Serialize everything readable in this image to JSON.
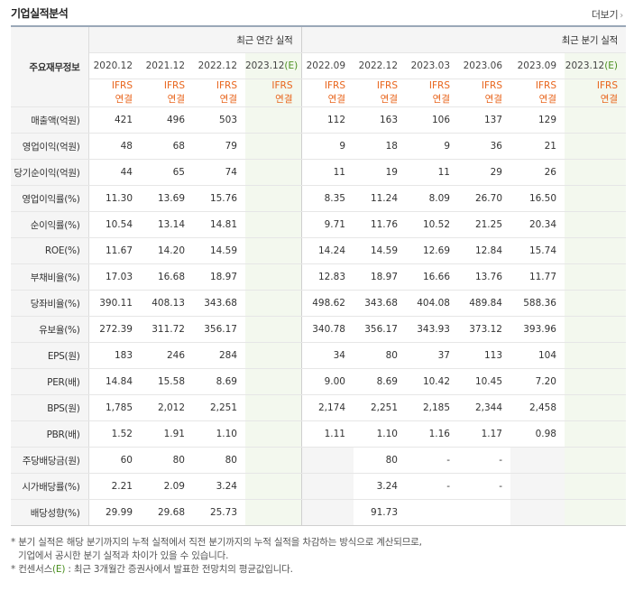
{
  "title": "기업실적분석",
  "more_label": "더보기",
  "header": {
    "row_label": "주요재무정보",
    "annual_label": "최근 연간 실적",
    "quarter_label": "최근 분기 실적",
    "estimate_suffix": "(E)",
    "annual_periods": [
      "2020.12",
      "2021.12",
      "2022.12",
      "2023.12"
    ],
    "quarter_periods": [
      "2022.09",
      "2022.12",
      "2023.03",
      "2023.06",
      "2023.09",
      "2023.12"
    ],
    "ifrs_line1": "IFRS",
    "ifrs_line2": "연결"
  },
  "rows": [
    {
      "label": "매출액(억원)",
      "annual": [
        "421",
        "496",
        "503",
        ""
      ],
      "quarter": [
        "112",
        "163",
        "106",
        "137",
        "129",
        ""
      ]
    },
    {
      "label": "영업이익(억원)",
      "annual": [
        "48",
        "68",
        "79",
        ""
      ],
      "quarter": [
        "9",
        "18",
        "9",
        "36",
        "21",
        ""
      ]
    },
    {
      "label": "당기순이익(억원)",
      "annual": [
        "44",
        "65",
        "74",
        ""
      ],
      "quarter": [
        "11",
        "19",
        "11",
        "29",
        "26",
        ""
      ]
    },
    {
      "label": "영업이익률(%)",
      "annual": [
        "11.30",
        "13.69",
        "15.76",
        ""
      ],
      "quarter": [
        "8.35",
        "11.24",
        "8.09",
        "26.70",
        "16.50",
        ""
      ]
    },
    {
      "label": "순이익률(%)",
      "annual": [
        "10.54",
        "13.14",
        "14.81",
        ""
      ],
      "quarter": [
        "9.71",
        "11.76",
        "10.52",
        "21.25",
        "20.34",
        ""
      ]
    },
    {
      "label": "ROE(%)",
      "annual": [
        "11.67",
        "14.20",
        "14.59",
        ""
      ],
      "quarter": [
        "14.24",
        "14.59",
        "12.69",
        "12.84",
        "15.74",
        ""
      ]
    },
    {
      "label": "부채비율(%)",
      "annual": [
        "17.03",
        "16.68",
        "18.97",
        ""
      ],
      "quarter": [
        "12.83",
        "18.97",
        "16.66",
        "13.76",
        "11.77",
        ""
      ]
    },
    {
      "label": "당좌비율(%)",
      "annual": [
        "390.11",
        "408.13",
        "343.68",
        ""
      ],
      "quarter": [
        "498.62",
        "343.68",
        "404.08",
        "489.84",
        "588.36",
        ""
      ]
    },
    {
      "label": "유보율(%)",
      "annual": [
        "272.39",
        "311.72",
        "356.17",
        ""
      ],
      "quarter": [
        "340.78",
        "356.17",
        "343.93",
        "373.12",
        "393.96",
        ""
      ]
    },
    {
      "label": "EPS(원)",
      "annual": [
        "183",
        "246",
        "284",
        ""
      ],
      "quarter": [
        "34",
        "80",
        "37",
        "113",
        "104",
        ""
      ]
    },
    {
      "label": "PER(배)",
      "annual": [
        "14.84",
        "15.58",
        "8.69",
        ""
      ],
      "quarter": [
        "9.00",
        "8.69",
        "10.42",
        "10.45",
        "7.20",
        ""
      ]
    },
    {
      "label": "BPS(원)",
      "annual": [
        "1,785",
        "2,012",
        "2,251",
        ""
      ],
      "quarter": [
        "2,174",
        "2,251",
        "2,185",
        "2,344",
        "2,458",
        ""
      ]
    },
    {
      "label": "PBR(배)",
      "annual": [
        "1.52",
        "1.91",
        "1.10",
        ""
      ],
      "quarter": [
        "1.11",
        "1.10",
        "1.16",
        "1.17",
        "0.98",
        ""
      ]
    },
    {
      "label": "주당배당금(원)",
      "annual": [
        "60",
        "80",
        "80",
        ""
      ],
      "quarter": [
        "",
        "80",
        "-",
        "-",
        "",
        ""
      ]
    },
    {
      "label": "시가배당률(%)",
      "annual": [
        "2.21",
        "2.09",
        "3.24",
        ""
      ],
      "quarter": [
        "",
        "3.24",
        "-",
        "-",
        "",
        ""
      ]
    },
    {
      "label": "배당성향(%)",
      "annual": [
        "29.99",
        "29.68",
        "25.73",
        ""
      ],
      "quarter": [
        "",
        "91.73",
        "",
        "",
        "",
        ""
      ]
    }
  ],
  "notes": {
    "line1": "* 분기 실적은 해당 분기까지의 누적 실적에서 직전 분기까지의 누적 실적을 차감하는 방식으로 계산되므로,",
    "line2": "기업에서 공시한 분기 실적과 차이가 있을 수 있습니다.",
    "line3_prefix": "* 컨센서스",
    "line3_e": "(E)",
    "line3_suffix": " : 최근 3개월간 증권사에서 발표한 전망치의 평균값입니다."
  },
  "colors": {
    "accent_orange": "#e8641b",
    "estimate_green": "#4a8f1f",
    "estimate_bg": "#f3f8ee",
    "header_bg": "#f5f5f5"
  }
}
